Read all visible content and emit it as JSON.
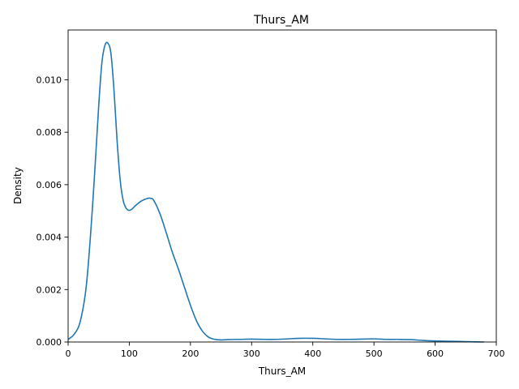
{
  "chart_data": {
    "type": "line",
    "title": "Thurs_AM",
    "xlabel": "Thurs_AM",
    "ylabel": "Density",
    "xlim": [
      0,
      700
    ],
    "ylim": [
      0,
      0.0119
    ],
    "xticks": [
      0,
      100,
      200,
      300,
      400,
      500,
      600,
      700
    ],
    "xtick_labels": [
      "0",
      "100",
      "200",
      "300",
      "400",
      "500",
      "600",
      "700"
    ],
    "yticks": [
      0,
      0.002,
      0.004,
      0.006,
      0.008,
      0.01
    ],
    "ytick_labels": [
      "0.000",
      "0.002",
      "0.004",
      "0.006",
      "0.008",
      "0.010"
    ],
    "grid": false,
    "series": [
      {
        "color": "#1f77b4",
        "x": [
          0,
          10,
          20,
          30,
          40,
          50,
          55,
          60,
          65,
          70,
          75,
          80,
          85,
          90,
          95,
          100,
          105,
          110,
          120,
          130,
          135,
          140,
          150,
          160,
          170,
          180,
          190,
          200,
          210,
          220,
          230,
          240,
          250,
          260,
          280,
          300,
          320,
          340,
          360,
          380,
          400,
          420,
          440,
          460,
          480,
          500,
          520,
          540,
          560,
          580,
          600,
          620,
          640,
          660,
          680
        ],
        "y": [
          0.0001,
          0.0003,
          0.0008,
          0.0022,
          0.0052,
          0.009,
          0.0106,
          0.0113,
          0.0114,
          0.011,
          0.0096,
          0.0077,
          0.0062,
          0.0054,
          0.0051,
          0.00502,
          0.00508,
          0.0052,
          0.00538,
          0.00548,
          0.00548,
          0.0054,
          0.0049,
          0.0042,
          0.00345,
          0.0028,
          0.0021,
          0.0014,
          0.0008,
          0.0004,
          0.00018,
          0.0001,
          8e-05,
          9e-05,
          0.0001,
          0.00011,
          0.0001,
          0.0001,
          0.00012,
          0.00014,
          0.00014,
          0.00012,
          0.0001,
          0.0001,
          0.00011,
          0.00012,
          0.0001,
          0.0001,
          9e-05,
          6e-05,
          4e-05,
          3e-05,
          2e-05,
          1e-05,
          0.0
        ]
      }
    ]
  }
}
